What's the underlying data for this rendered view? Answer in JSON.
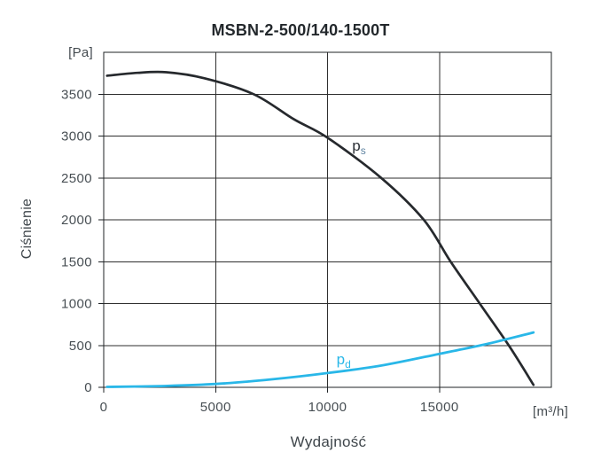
{
  "title": "MSBN-2-500/140-1500T",
  "chart_data": {
    "type": "line",
    "title": "MSBN-2-500/140-1500T",
    "xlabel": "Wydajność",
    "ylabel": "Ciśnienie",
    "x_unit": "[m³/h]",
    "y_unit": "[Pa]",
    "xlim": [
      0,
      20000
    ],
    "ylim": [
      0,
      4000
    ],
    "xticks": [
      0,
      5000,
      10000,
      15000
    ],
    "yticks": [
      0,
      500,
      1000,
      1500,
      2000,
      2500,
      3000,
      3500
    ],
    "grid": true,
    "legend_position": "inline-curve-labels",
    "axis_color": "#1f2326",
    "grid_color": "#2e2e2e",
    "tick_label_color": "#474e53",
    "series": [
      {
        "name": "ps",
        "label_main": "p",
        "label_sub": "s",
        "color": "#26292d",
        "label_color": "#2c3137",
        "sub_color": "#5e82a0",
        "line_width": 2.7,
        "label_pos": [
          11100,
          2825
        ],
        "points": [
          [
            150,
            3720
          ],
          [
            1500,
            3755
          ],
          [
            2800,
            3762
          ],
          [
            4500,
            3690
          ],
          [
            6700,
            3500
          ],
          [
            8500,
            3200
          ],
          [
            10000,
            2980
          ],
          [
            12400,
            2500
          ],
          [
            14300,
            2000
          ],
          [
            15500,
            1500
          ],
          [
            16800,
            1000
          ],
          [
            18100,
            500
          ],
          [
            19200,
            30
          ]
        ]
      },
      {
        "name": "pd",
        "label_main": "p",
        "label_sub": "d",
        "color": "#29b7e8",
        "label_color": "#29b7e8",
        "sub_color": "#29b7e8",
        "line_width": 2.8,
        "label_pos": [
          10400,
          275
        ],
        "points": [
          [
            150,
            5
          ],
          [
            2500,
            15
          ],
          [
            5000,
            40
          ],
          [
            7500,
            95
          ],
          [
            10000,
            170
          ],
          [
            12500,
            265
          ],
          [
            15000,
            400
          ],
          [
            17000,
            510
          ],
          [
            19200,
            655
          ]
        ]
      }
    ]
  }
}
